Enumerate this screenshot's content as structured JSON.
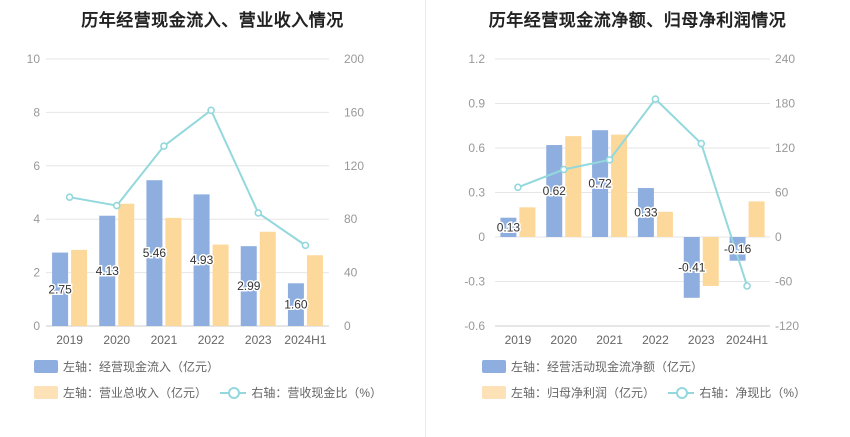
{
  "charts": [
    {
      "title": "历年经营现金流入、营业收入情况",
      "legend": [
        "左轴：经营现金流入（亿元）",
        "左轴：营业总收入（亿元）",
        "右轴：营收现金比（%）"
      ]
    },
    {
      "title": "历年经营现金流净额、归母净利润情况",
      "legend": [
        "左轴：经营活动现金流净额（亿元）",
        "左轴：归母净利润（亿元）",
        "右轴：净现比（%）"
      ]
    }
  ],
  "colors": {
    "bar_primary": "#8eaedf",
    "bar_secondary": "#fdd89b",
    "line": "#93d8dc",
    "grid": "#e6e6e6",
    "axis_text": "#999999"
  },
  "chart_data": [
    {
      "type": "bar",
      "title": "历年经营现金流入、营业收入情况",
      "categories": [
        "2019",
        "2020",
        "2021",
        "2022",
        "2023",
        "2024H1"
      ],
      "left_axis": {
        "min": 0,
        "max": 10,
        "ticks": [
          "0",
          "2",
          "4",
          "6",
          "8",
          "10"
        ]
      },
      "right_axis": {
        "min": 0,
        "max": 200,
        "ticks": [
          "0",
          "40",
          "80",
          "120",
          "160",
          "200"
        ]
      },
      "series": [
        {
          "name": "左轴：经营现金流入（亿元）",
          "axis": "left",
          "kind": "bar",
          "values": [
            2.75,
            4.13,
            5.46,
            4.93,
            2.99,
            1.6
          ],
          "labels": [
            "2.75",
            "4.13",
            "5.46",
            "4.93",
            "2.99",
            "1.60"
          ]
        },
        {
          "name": "左轴：营业总收入（亿元）",
          "axis": "left",
          "kind": "bar",
          "values": [
            2.85,
            4.58,
            4.05,
            3.05,
            3.53,
            2.65
          ]
        },
        {
          "name": "右轴：营收现金比（%）",
          "axis": "right",
          "kind": "line",
          "values": [
            96.5,
            90.2,
            134.8,
            161.6,
            84.7,
            60.4
          ]
        }
      ]
    },
    {
      "type": "bar",
      "title": "历年经营现金流净额、归母净利润情况",
      "categories": [
        "2019",
        "2020",
        "2021",
        "2022",
        "2023",
        "2024H1"
      ],
      "left_axis": {
        "min": -0.6,
        "max": 1.2,
        "ticks": [
          "-0.6",
          "-0.3",
          "0",
          "0.3",
          "0.6",
          "0.9",
          "1.2"
        ]
      },
      "right_axis": {
        "min": -120,
        "max": 240,
        "ticks": [
          "-120",
          "-60",
          "0",
          "60",
          "120",
          "180",
          "240"
        ]
      },
      "series": [
        {
          "name": "左轴：经营活动现金流净额（亿元）",
          "axis": "left",
          "kind": "bar",
          "values": [
            0.13,
            0.62,
            0.72,
            0.33,
            -0.41,
            -0.16
          ],
          "labels": [
            "0.13",
            "0.62",
            "0.72",
            "0.33",
            "-0.41",
            "-0.16"
          ]
        },
        {
          "name": "左轴：归母净利润（亿元）",
          "axis": "left",
          "kind": "bar",
          "values": [
            0.2,
            0.68,
            0.69,
            0.17,
            -0.33,
            0.24
          ]
        },
        {
          "name": "右轴：净现比（%）",
          "axis": "right",
          "kind": "line",
          "values": [
            67,
            91,
            104,
            186,
            126,
            -66
          ]
        }
      ]
    }
  ]
}
